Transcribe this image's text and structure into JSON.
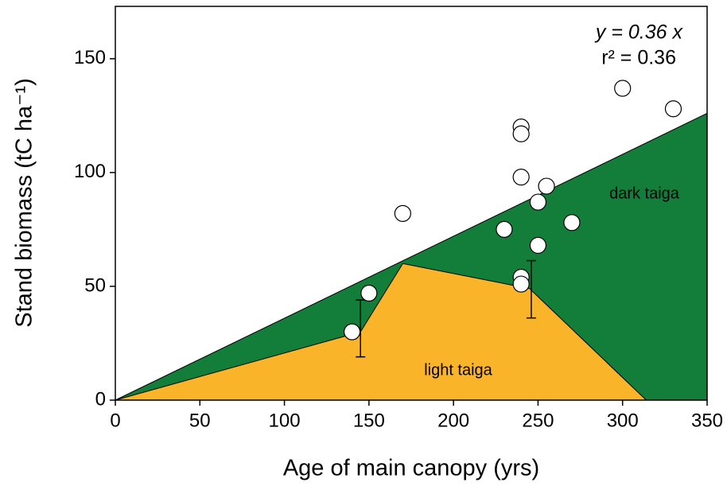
{
  "chart_data": {
    "type": "scatter",
    "xlabel": "Age of main canopy (yrs)",
    "ylabel": "Stand biomass (tC ha⁻¹)",
    "annotations": [
      "y = 0.36 x",
      "r² = 0.36"
    ],
    "xlim": [
      0,
      350
    ],
    "ylim": [
      0,
      173
    ],
    "xticks": [
      0,
      50,
      100,
      150,
      200,
      250,
      300,
      350
    ],
    "yticks": [
      0,
      50,
      100,
      150
    ],
    "areas": [
      {
        "name": "dark taiga",
        "color": "#137d3a",
        "x": [
          0,
          350,
          350
        ],
        "y": [
          0,
          126,
          0
        ]
      },
      {
        "name": "light taiga",
        "color": "#f9b42a",
        "x": [
          0,
          145,
          170,
          245,
          314
        ],
        "y": [
          0,
          30,
          60,
          49,
          0
        ]
      }
    ],
    "x": [
      140,
      150,
      170,
      230,
      240,
      240,
      240,
      240,
      240,
      250,
      250,
      255,
      270,
      300,
      330
    ],
    "values": [
      30,
      47,
      82,
      75,
      120,
      117,
      98,
      54,
      51,
      68,
      87,
      94,
      78,
      137,
      128
    ],
    "error_bars": {
      "x": [
        145,
        246
      ],
      "values": [
        31.5,
        48.7
      ],
      "errors": [
        12.5,
        12.6
      ]
    }
  }
}
